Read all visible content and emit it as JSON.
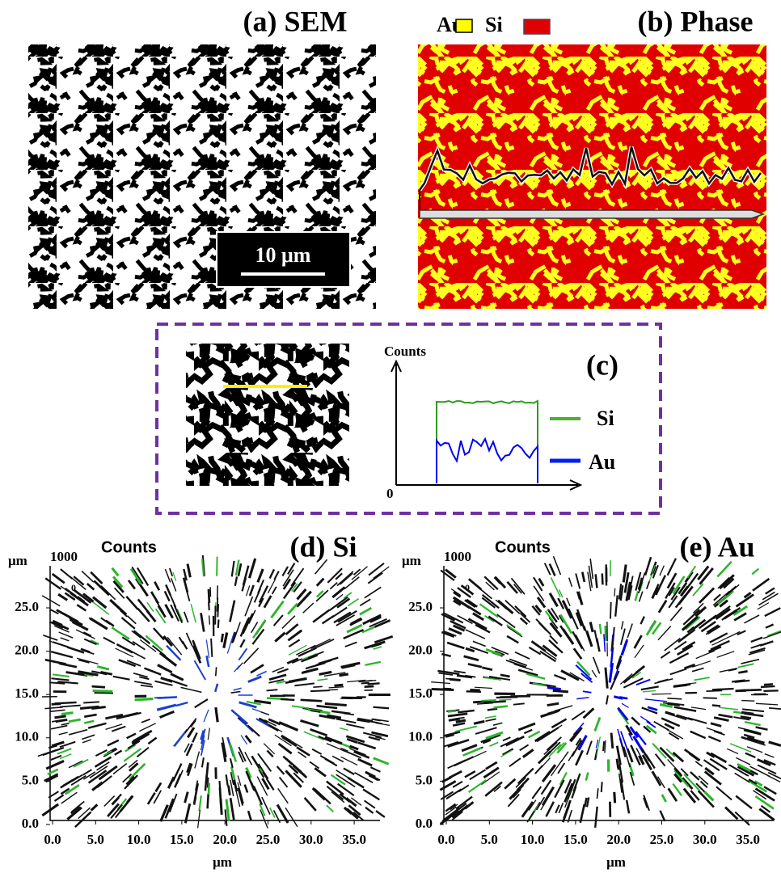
{
  "panel_a": {
    "title": "(a) SEM",
    "scale_bar": "10 μm"
  },
  "panel_b": {
    "title": "(b) Phase",
    "legend": [
      "Au",
      "Si"
    ]
  },
  "panel_c": {
    "title": "(c)",
    "y_axis_label": "Counts",
    "origin_label": "0",
    "legend": [
      "Si",
      "Au"
    ]
  },
  "panel_d": {
    "title": "(d) Si",
    "z_label": "Counts",
    "z_tick": "1000",
    "z_tick_low": "0",
    "y_unit": "μm",
    "y_ticks": [
      "0.0",
      "5.0",
      "10.0",
      "15.0",
      "20.0",
      "25.0"
    ],
    "x_ticks": [
      "0.0",
      "5.0",
      "10.0",
      "15.0",
      "20.0",
      "25.0",
      "30.0",
      "35.0"
    ],
    "x_label": "μm"
  },
  "panel_e": {
    "title": "(e) Au",
    "z_label": "Counts",
    "z_tick": "1000",
    "z_tick_low": "0",
    "y_unit": "μm",
    "y_ticks": [
      "0.0",
      "5.0",
      "10.0",
      "15.0",
      "20.0",
      "25.0"
    ],
    "x_ticks": [
      "0.0",
      "5.0",
      "10.0",
      "15.0",
      "20.0",
      "25.0",
      "30.0",
      "35.0"
    ],
    "x_label": "μm"
  }
}
